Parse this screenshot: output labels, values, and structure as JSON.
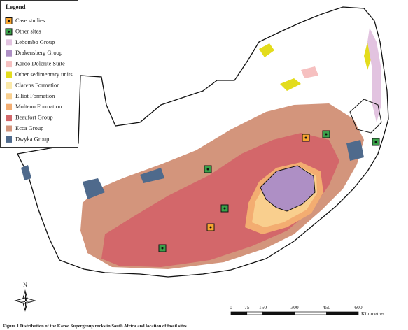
{
  "legend": {
    "title": "Legend",
    "items": [
      {
        "label": "Case studies",
        "color": "#f7a531",
        "marker": true
      },
      {
        "label": "Other sites",
        "color": "#3aa14a",
        "marker": true
      },
      {
        "label": "Lebombo Group",
        "color": "#e2c3e0"
      },
      {
        "label": "Drakensberg Group",
        "color": "#ae8fc5"
      },
      {
        "label": "Karoo Dolerite Suite",
        "color": "#f6c0c0"
      },
      {
        "label": "Other sedimentary units",
        "color": "#e3dc1c"
      },
      {
        "label": "Clarens Formation",
        "color": "#fbe9a8"
      },
      {
        "label": "Elliot Formation",
        "color": "#f9cf8e"
      },
      {
        "label": "Molteno Formation",
        "color": "#f3ad71"
      },
      {
        "label": "Beaufort Group",
        "color": "#d3676a"
      },
      {
        "label": "Ecca Group",
        "color": "#d3957c"
      },
      {
        "label": "Dwyka Group",
        "color": "#4f6a8c"
      }
    ]
  },
  "scale_bar": {
    "ticks": [
      0,
      75,
      150,
      300,
      450,
      600
    ],
    "unit": "Kilometres"
  },
  "north_label": "N",
  "caption": "Figure 1 Distribution of the Karoo Supergroup rocks in South Africa and location of fossil sites"
}
